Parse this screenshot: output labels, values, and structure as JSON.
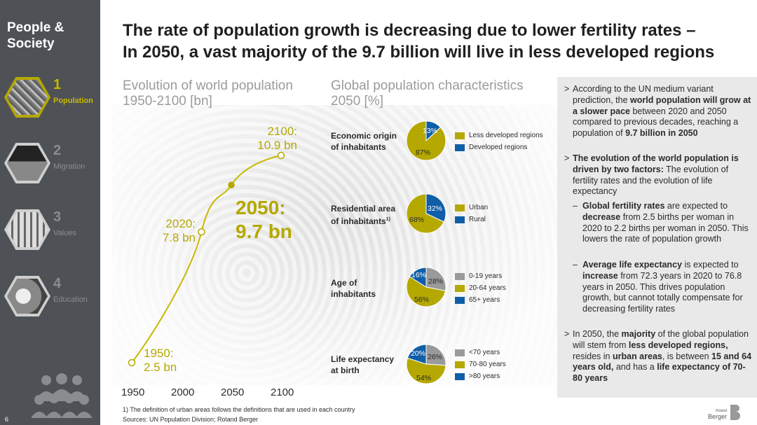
{
  "sidebar": {
    "title_line1": "People &",
    "title_line2": "Society",
    "items": [
      {
        "num": "1",
        "label": "Population"
      },
      {
        "num": "2",
        "label": "Migration"
      },
      {
        "num": "3",
        "label": "Values"
      },
      {
        "num": "4",
        "label": "Education"
      }
    ],
    "page_number": "6"
  },
  "title_line1": "The rate of population growth is decreasing due to lower fertility rates –",
  "title_line2": "In 2050, a vast majority of the 9.7 billion will live in less developed regions",
  "left_heading_line1": "Evolution of world population",
  "left_heading_line2": "1950-2100 [bn]",
  "mid_heading_line1": "Global population characteristics",
  "mid_heading_line2": "2050 [%]",
  "colors": {
    "olive": "#b5a800",
    "blue": "#0f5ea8",
    "grey": "#9a9a9a",
    "sidebar": "#4e5256",
    "panel": "#e9e9e9"
  },
  "chart_data": [
    {
      "type": "line",
      "title": "Evolution of world population 1950-2100 [bn]",
      "x": [
        1950,
        2020,
        2050,
        2100
      ],
      "y": [
        2.5,
        7.8,
        9.7,
        10.9
      ],
      "xticks": [
        "1950",
        "2000",
        "2050",
        "2100"
      ],
      "xlim": [
        1950,
        2100
      ],
      "annotations": [
        {
          "year_line": "1950:",
          "value_line": "2.5 bn"
        },
        {
          "year_line": "2020:",
          "value_line": "7.8 bn"
        },
        {
          "year_line": "2050:",
          "value_line": "9.7 bn"
        },
        {
          "year_line": "2100:",
          "value_line": "10.9 bn"
        }
      ]
    },
    {
      "type": "pie",
      "label_line1": "Economic origin",
      "label_line2": "of inhabitants",
      "slices": [
        {
          "name": "Developed regions",
          "value": 13,
          "label": "13%",
          "color": "#0f5ea8"
        },
        {
          "name": "Less developed regions",
          "value": 87,
          "label": "87%",
          "color": "#b5a800"
        }
      ],
      "legend": [
        "Less developed regions",
        "Developed regions"
      ]
    },
    {
      "type": "pie",
      "label_line1": "Residential area",
      "label_line2": "of inhabitants",
      "footnote_mark": "1)",
      "slices": [
        {
          "name": "Rural",
          "value": 32,
          "label": "32%",
          "color": "#0f5ea8"
        },
        {
          "name": "Urban",
          "value": 68,
          "label": "68%",
          "color": "#b5a800"
        }
      ],
      "legend": [
        "Urban",
        "Rural"
      ]
    },
    {
      "type": "pie",
      "label_line1": "Age of",
      "label_line2": "inhabitants",
      "slices": [
        {
          "name": "0-19 years",
          "value": 28,
          "label": "28%",
          "color": "#9a9a9a"
        },
        {
          "name": "20-64 years",
          "value": 56,
          "label": "56%",
          "color": "#b5a800"
        },
        {
          "name": "65+ years",
          "value": 16,
          "label": "16%",
          "color": "#0f5ea8"
        }
      ],
      "legend": [
        "0-19 years",
        "20-64 years",
        "65+ years"
      ]
    },
    {
      "type": "pie",
      "label_line1": "Life expectancy",
      "label_line2": "at birth",
      "slices": [
        {
          "name": "<70 years",
          "value": 26,
          "label": "26%",
          "color": "#9a9a9a"
        },
        {
          "name": "70-80 years",
          "value": 54,
          "label": "54%",
          "color": "#b5a800"
        },
        {
          "name": ">80 years",
          "value": 20,
          "label": "20%",
          "color": "#0f5ea8"
        }
      ],
      "legend": [
        "<70 years",
        "70-80 years",
        ">80 years"
      ]
    }
  ],
  "panel": {
    "b1_a": "According to the UN medium variant prediction, the ",
    "b1_b": "world population will grow at a slower pace",
    "b1_c": " between 2020 and 2050 compared to previous decades, reaching a population of ",
    "b1_d": "9.7 billion in 2050",
    "b2_a": "The evolution of the world population is driven by two factors:",
    "b2_b": " The evolution of fertility rates and the evolution of life expectancy",
    "s1_a": "Global fertility rates",
    "s1_b": " are expected to ",
    "s1_c": "decrease",
    "s1_d": " from 2.5 births per woman in 2020 to 2.2 births per woman in 2050. This lowers the rate of population growth",
    "s2_a": "Average life expectancy",
    "s2_b": " is expected to ",
    "s2_c": "increase",
    "s2_d": " from 72.3 years in 2020 to 76.8 years in 2050. This drives population growth, but cannot totally compensate for decreasing fertility rates",
    "b3_a": "In 2050, the ",
    "b3_b": "majority",
    "b3_c": " of the global population will stem from ",
    "b3_d": "less developed regions,",
    "b3_e": " resides in ",
    "b3_f": "urban areas",
    "b3_g": ", is between ",
    "b3_h": "15 and 64 years old,",
    "b3_i": " and has a ",
    "b3_j": "life expectancy of 70-80 years",
    "bullet_mark": ">",
    "sub_mark": "–"
  },
  "footnote1": "1) The definition of urban areas follows the definitions that are used in each country",
  "footnote2": "Sources: UN Population Division; Roland Berger",
  "logo_line1": "Roland",
  "logo_line2": "Berger"
}
